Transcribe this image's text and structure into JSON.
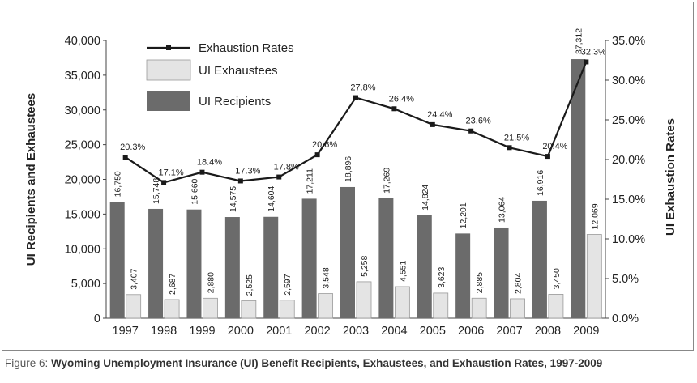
{
  "caption": {
    "lead": "Figure 6:",
    "text": "Wyoming Unemployment Insurance (UI) Benefit Recipients, Exhaustees, and Exhaustion Rates, 1997-2009"
  },
  "colors": {
    "recipients": "#6b6b6b",
    "exhaustees": "#e4e4e4",
    "line": "#1a1a1a"
  },
  "chart_data": {
    "type": "bar",
    "title": "",
    "ylabel": "UI Recipients and Exhaustees",
    "y2label": "UI Exhaustion Rates",
    "xlabel": "",
    "categories": [
      "1997",
      "1998",
      "1999",
      "2000",
      "2001",
      "2002",
      "2003",
      "2004",
      "2005",
      "2006",
      "2007",
      "2008",
      "2009"
    ],
    "ylim": [
      0,
      40000
    ],
    "y2lim": [
      0,
      35
    ],
    "yticks": [
      "0",
      "5,000",
      "10,000",
      "15,000",
      "20,000",
      "25,000",
      "30,000",
      "35,000",
      "40,000"
    ],
    "y2ticks": [
      "0.0%",
      "5.0%",
      "10.0%",
      "15.0%",
      "20.0%",
      "25.0%",
      "30.0%",
      "35.0%"
    ],
    "legend_position": "top-left",
    "grid": false,
    "series": [
      {
        "name": "UI Recipients",
        "kind": "bar",
        "values": [
          16750,
          15748,
          15660,
          14575,
          14604,
          17211,
          18896,
          17269,
          14824,
          12201,
          13064,
          16916,
          37312
        ],
        "labels": [
          "16,750",
          "15,748",
          "15,660",
          "14,575",
          "14,604",
          "17,211",
          "18,896",
          "17,269",
          "14,824",
          "12,201",
          "13,064",
          "16,916",
          "37,312"
        ]
      },
      {
        "name": "UI Exhaustees",
        "kind": "bar",
        "values": [
          3407,
          2687,
          2880,
          2525,
          2597,
          3548,
          5258,
          4551,
          3623,
          2885,
          2804,
          3450,
          12069
        ],
        "labels": [
          "3,407",
          "2,687",
          "2,880",
          "2,525",
          "2,597",
          "3,548",
          "5,258",
          "4,551",
          "3,623",
          "2,885",
          "2,804",
          "3,450",
          "12,069"
        ]
      },
      {
        "name": "Exhaustion Rates",
        "kind": "line",
        "axis": "right",
        "values": [
          20.3,
          17.1,
          18.4,
          17.3,
          17.8,
          20.6,
          27.8,
          26.4,
          24.4,
          23.6,
          21.5,
          20.4,
          32.3
        ],
        "labels": [
          "20.3%",
          "17.1%",
          "18.4%",
          "17.3%",
          "17.8%",
          "20.6%",
          "27.8%",
          "26.4%",
          "24.4%",
          "23.6%",
          "21.5%",
          "20.4%",
          "32.3%"
        ]
      }
    ]
  }
}
